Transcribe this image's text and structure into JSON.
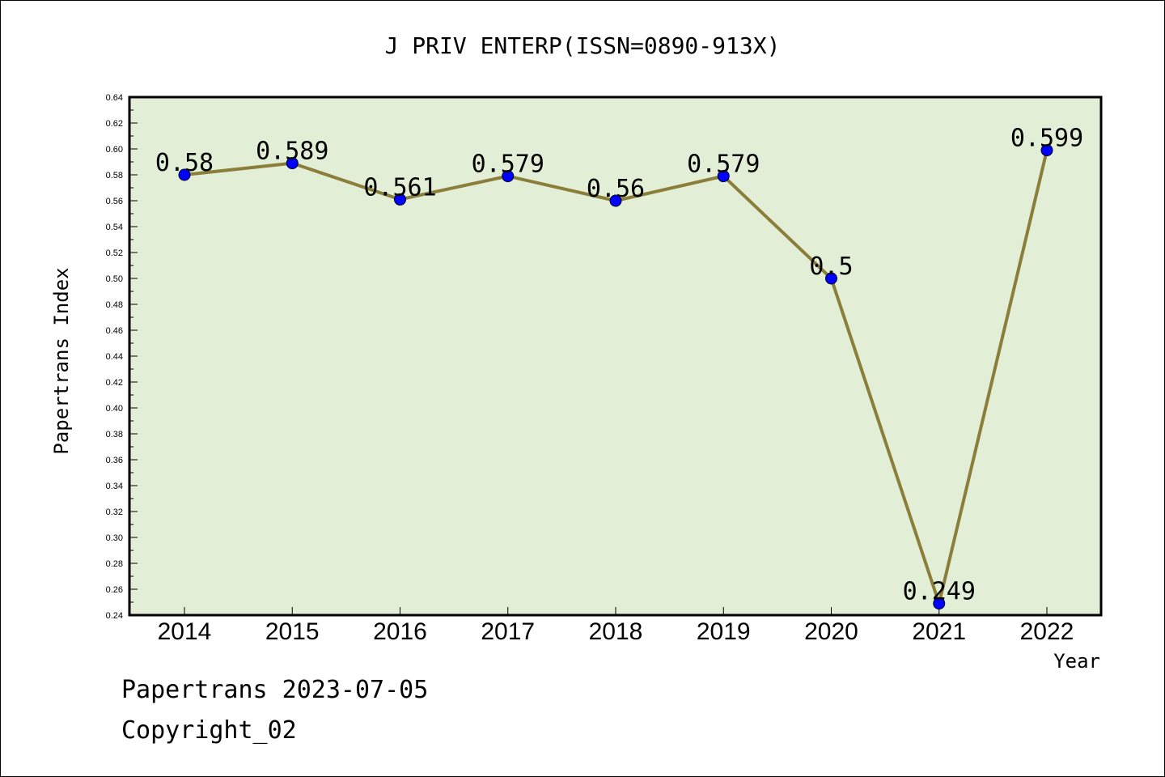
{
  "chart_data": {
    "type": "line",
    "title": "J PRIV ENTERP(ISSN=0890-913X)",
    "xlabel": "Year",
    "ylabel": "Papertrans Index",
    "categories": [
      "2014",
      "2015",
      "2016",
      "2017",
      "2018",
      "2019",
      "2020",
      "2021",
      "2022"
    ],
    "series": [
      {
        "values": [
          0.58,
          0.589,
          0.561,
          0.579,
          0.56,
          0.579,
          0.5,
          0.249,
          0.599
        ],
        "labels": [
          "0.58",
          "0.589",
          "0.561",
          "0.579",
          "0.56",
          "0.579",
          "0.5",
          "0.249",
          "0.599"
        ]
      }
    ],
    "ylim": [
      0.24,
      0.64
    ],
    "yticks": [
      "0.24",
      "0.26",
      "0.28",
      "0.30",
      "0.32",
      "0.34",
      "0.36",
      "0.38",
      "0.40",
      "0.42",
      "0.44",
      "0.46",
      "0.48",
      "0.50",
      "0.52",
      "0.54",
      "0.56",
      "0.58",
      "0.60",
      "0.62",
      "0.64"
    ],
    "grid": false,
    "colors": {
      "plot_bg": "#e2efd6",
      "line": "#8b7d3a",
      "marker": "#0000ff"
    }
  },
  "footer": {
    "line1": "Papertrans 2023-07-05",
    "line2": "Copyright_02"
  }
}
